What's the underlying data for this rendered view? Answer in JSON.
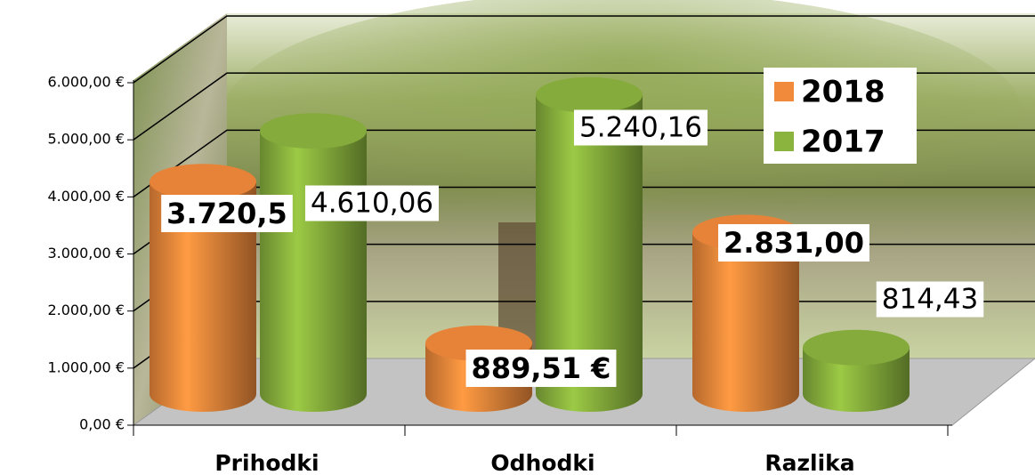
{
  "chart_data": {
    "type": "bar",
    "categories": [
      "Prihodki",
      "Odhodki",
      "Razlika"
    ],
    "series": [
      {
        "name": "2018",
        "color": "#f28a3c",
        "values": [
          3720.5,
          889.51,
          2831.0
        ],
        "value_labels": [
          "3.720,5",
          "889,51 €",
          "2.831,00"
        ]
      },
      {
        "name": "2017",
        "color": "#8bb43e",
        "values": [
          4610.06,
          5240.16,
          814.43
        ],
        "value_labels": [
          "4.610,06",
          "5.240,16",
          "814,43"
        ]
      }
    ],
    "ylim": [
      0,
      6000
    ],
    "yticks": [
      {
        "value": 0,
        "label": "0,00 €"
      },
      {
        "value": 1000,
        "label": "1.000,00 €"
      },
      {
        "value": 2000,
        "label": "2.000,00 €"
      },
      {
        "value": 3000,
        "label": "3.000,00 €"
      },
      {
        "value": 4000,
        "label": "4.000,00 €"
      },
      {
        "value": 5000,
        "label": "5.000,00 €"
      },
      {
        "value": 6000,
        "label": "6.000,00 €"
      }
    ],
    "grid": true
  }
}
